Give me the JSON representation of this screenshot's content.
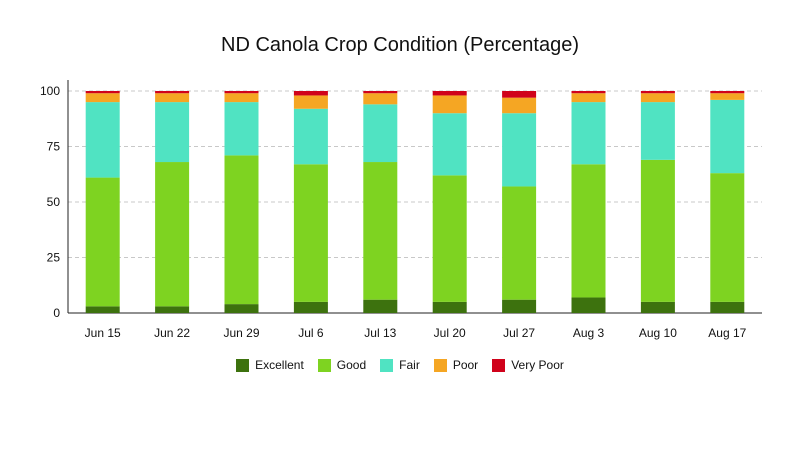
{
  "chart_data": {
    "type": "bar",
    "stacked": true,
    "title": "ND Canola Crop Condition (Percentage)",
    "xlabel": "",
    "ylabel": "",
    "ylim": [
      0,
      100
    ],
    "yticks": [
      0,
      25,
      50,
      75,
      100
    ],
    "grid": true,
    "legend_position": "bottom",
    "categories": [
      "Jun 15",
      "Jun 22",
      "Jun 29",
      "Jul 6",
      "Jul 13",
      "Jul 20",
      "Jul 27",
      "Aug 3",
      "Aug 10",
      "Aug 17"
    ],
    "series": [
      {
        "name": "Excellent",
        "color": "#3d720e",
        "values": [
          3,
          3,
          4,
          5,
          6,
          5,
          6,
          7,
          5,
          5
        ]
      },
      {
        "name": "Good",
        "color": "#7ed321",
        "values": [
          58,
          65,
          67,
          62,
          62,
          57,
          51,
          60,
          64,
          58
        ]
      },
      {
        "name": "Fair",
        "color": "#50e3c2",
        "values": [
          34,
          27,
          24,
          25,
          26,
          28,
          33,
          28,
          26,
          33
        ]
      },
      {
        "name": "Poor",
        "color": "#f5a623",
        "values": [
          4,
          4,
          4,
          6,
          5,
          8,
          7,
          4,
          4,
          3
        ]
      },
      {
        "name": "Very Poor",
        "color": "#d0021b",
        "values": [
          1,
          1,
          1,
          2,
          1,
          2,
          3,
          1,
          1,
          1
        ]
      }
    ]
  }
}
